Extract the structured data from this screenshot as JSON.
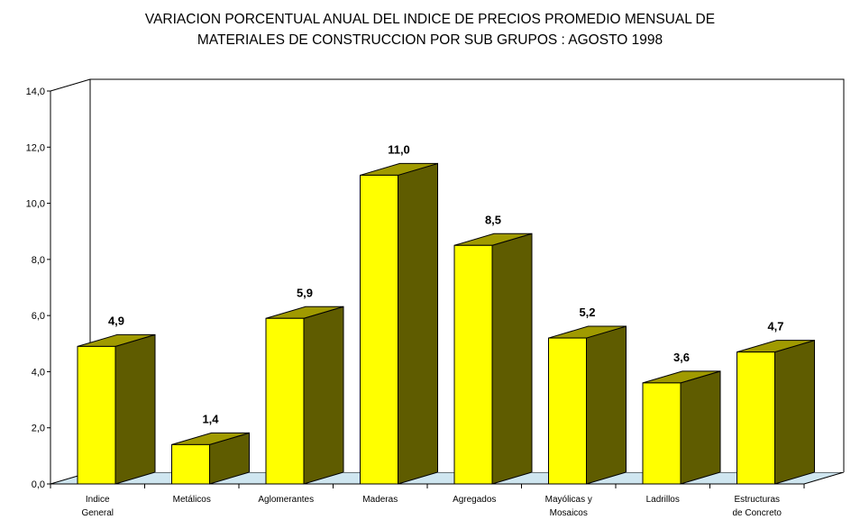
{
  "chart_data": {
    "type": "bar",
    "title": [
      "VARIACION PORCENTUAL ANUAL DEL INDICE DE PRECIOS PROMEDIO MENSUAL DE",
      "MATERIALES DE CONSTRUCCION POR SUB GRUPOS : AGOSTO 1998"
    ],
    "categories": [
      [
        "Indice",
        "General"
      ],
      [
        "Metálicos"
      ],
      [
        "Aglomerantes"
      ],
      [
        "Maderas"
      ],
      [
        "Agregados"
      ],
      [
        "Mayólicas y",
        "Mosaicos"
      ],
      [
        "Ladrillos"
      ],
      [
        "Estructuras",
        "de Concreto"
      ]
    ],
    "values": [
      4.9,
      1.4,
      5.9,
      11.0,
      8.5,
      5.2,
      3.6,
      4.7
    ],
    "data_labels": [
      "4,9",
      "1,4",
      "5,9",
      "11,0",
      "8,5",
      "5,2",
      "3,6",
      "4,7"
    ],
    "ylim": [
      0,
      14
    ],
    "yticks": [
      "0,0",
      "2,0",
      "4,0",
      "6,0",
      "8,0",
      "10,0",
      "12,0",
      "14,0"
    ],
    "grid": false,
    "style": "3d",
    "colors": {
      "front": "#ffff00",
      "top": "#a09a00",
      "side": "#5f5c00",
      "floor": "#cfe6f0"
    }
  }
}
